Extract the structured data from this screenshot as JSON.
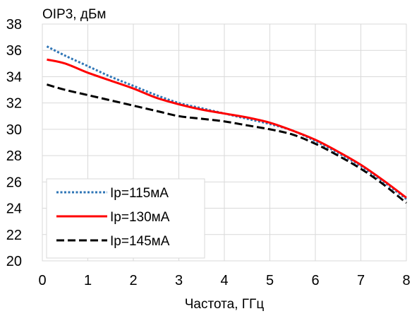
{
  "chart_data": {
    "type": "line",
    "title": "",
    "ylabel": "OIP3, дБм",
    "xlabel": "Частота, ГГц",
    "xlim": [
      0,
      8
    ],
    "ylim": [
      20,
      38
    ],
    "xticks": [
      0,
      1,
      2,
      3,
      4,
      5,
      6,
      7,
      8
    ],
    "yticks": [
      20,
      22,
      24,
      26,
      28,
      30,
      32,
      34,
      36,
      38
    ],
    "grid": true,
    "legend_position": "bottom-left",
    "series": [
      {
        "name": "Ip=115мА",
        "color": "#2e75b6",
        "style": "dotted",
        "x": [
          0.1,
          0.5,
          1.0,
          1.5,
          2.0,
          2.5,
          3.0,
          3.5,
          4.0,
          4.5,
          5.0,
          5.5,
          6.0,
          6.5,
          7.0,
          7.5,
          8.0
        ],
        "y": [
          36.3,
          35.6,
          34.8,
          34.0,
          33.3,
          32.6,
          32.0,
          31.6,
          31.2,
          30.8,
          30.4,
          29.9,
          29.1,
          28.2,
          27.2,
          26.0,
          24.7
        ]
      },
      {
        "name": "Ip=130мА",
        "color": "#ff0000",
        "style": "solid",
        "x": [
          0.1,
          0.5,
          1.0,
          1.5,
          2.0,
          2.5,
          3.0,
          3.5,
          4.0,
          4.5,
          5.0,
          5.5,
          6.0,
          6.5,
          7.0,
          7.5,
          8.0
        ],
        "y": [
          35.3,
          35.0,
          34.3,
          33.7,
          33.1,
          32.4,
          31.9,
          31.5,
          31.2,
          30.9,
          30.5,
          29.9,
          29.2,
          28.3,
          27.3,
          26.1,
          24.8
        ]
      },
      {
        "name": "Ip=145мА",
        "color": "#000000",
        "style": "dashed",
        "x": [
          0.1,
          0.5,
          1.0,
          1.5,
          2.0,
          2.5,
          3.0,
          3.5,
          4.0,
          4.5,
          5.0,
          5.5,
          6.0,
          6.5,
          7.0,
          7.5,
          8.0
        ],
        "y": [
          33.4,
          33.0,
          32.6,
          32.2,
          31.8,
          31.4,
          31.0,
          30.8,
          30.6,
          30.3,
          30.0,
          29.6,
          28.9,
          28.0,
          27.0,
          25.8,
          24.4
        ]
      }
    ]
  }
}
